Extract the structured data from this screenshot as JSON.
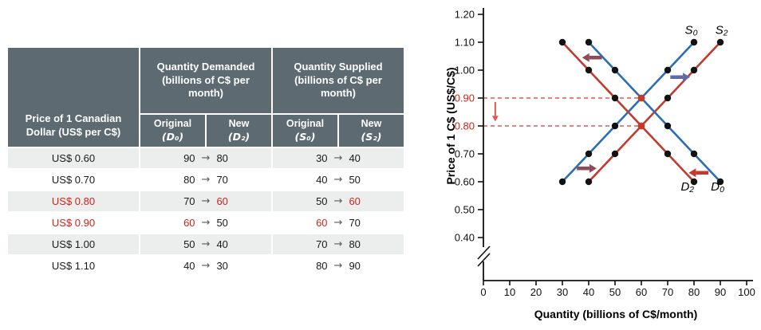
{
  "table": {
    "arrow_glyph": "→",
    "header": {
      "price_label": "Price of 1 Canadian Dollar (US$ per C$)",
      "demand_group": "Quantity Demanded (billions of C$ per month)",
      "supply_group": "Quantity Supplied (billions of C$ per month)",
      "sub_headers": [
        {
          "line1": "Original",
          "line2": "(D₀)"
        },
        {
          "line1": "New",
          "line2": "(D₂)"
        },
        {
          "line1": "Original",
          "line2": "(S₀)"
        },
        {
          "line1": "New",
          "line2": "(S₂)"
        }
      ]
    },
    "rows": [
      {
        "price": "US$ 0.60",
        "price_red": false,
        "qd_orig": "90",
        "qd_orig_red": false,
        "qd_new": "80",
        "qd_new_red": false,
        "qs_orig": "30",
        "qs_orig_red": false,
        "qs_new": "40",
        "qs_new_red": false
      },
      {
        "price": "US$ 0.70",
        "price_red": false,
        "qd_orig": "80",
        "qd_orig_red": false,
        "qd_new": "70",
        "qd_new_red": false,
        "qs_orig": "40",
        "qs_orig_red": false,
        "qs_new": "50",
        "qs_new_red": false
      },
      {
        "price": "US$ 0.80",
        "price_red": true,
        "qd_orig": "70",
        "qd_orig_red": false,
        "qd_new": "60",
        "qd_new_red": true,
        "qs_orig": "50",
        "qs_orig_red": false,
        "qs_new": "60",
        "qs_new_red": true
      },
      {
        "price": "US$ 0.90",
        "price_red": true,
        "qd_orig": "60",
        "qd_orig_red": true,
        "qd_new": "50",
        "qd_new_red": false,
        "qs_orig": "60",
        "qs_orig_red": true,
        "qs_new": "70",
        "qs_new_red": false
      },
      {
        "price": "US$ 1.00",
        "price_red": false,
        "qd_orig": "50",
        "qd_orig_red": false,
        "qd_new": "40",
        "qd_new_red": false,
        "qs_orig": "70",
        "qs_orig_red": false,
        "qs_new": "80",
        "qs_new_red": false
      },
      {
        "price": "US$ 1.10",
        "price_red": false,
        "qd_orig": "40",
        "qd_orig_red": false,
        "qd_new": "30",
        "qd_new_red": false,
        "qs_orig": "80",
        "qs_orig_red": false,
        "qs_new": "90",
        "qs_new_red": false
      }
    ]
  },
  "chart_data": {
    "type": "line",
    "xlabel": "Quantity (billions of C$/month)",
    "ylabel": "Price of 1 C$ (US$/C$)",
    "xlim": [
      0,
      100
    ],
    "ylim": [
      0.4,
      1.2
    ],
    "xticks": [
      0,
      10,
      20,
      30,
      40,
      50,
      60,
      70,
      80,
      90,
      100
    ],
    "yticks": [
      "1.20",
      "1.10",
      "1.00",
      "0.90",
      "0.80",
      "0.70",
      "0.60",
      "0.50",
      "0.40"
    ],
    "red_yticks": [
      "0.90",
      "0.80"
    ],
    "axis_break": true,
    "colors": {
      "original": "#2a6db4",
      "new": "#c23a2c",
      "dashed": "#dd5a52",
      "dot": "#121212",
      "eq_dot": "#c23a2c",
      "red_label": "#cc241a"
    },
    "series": [
      {
        "id": "S0",
        "label": "S₀",
        "role": "original",
        "points": [
          [
            30,
            0.6
          ],
          [
            40,
            0.7
          ],
          [
            50,
            0.8
          ],
          [
            60,
            0.9
          ],
          [
            70,
            1.0
          ],
          [
            80,
            1.1
          ]
        ],
        "label_at": [
          79,
          1.145
        ]
      },
      {
        "id": "S2",
        "label": "S₂",
        "role": "new",
        "points": [
          [
            40,
            0.6
          ],
          [
            50,
            0.7
          ],
          [
            60,
            0.8
          ],
          [
            70,
            0.9
          ],
          [
            80,
            1.0
          ],
          [
            90,
            1.1
          ]
        ],
        "label_at": [
          90.5,
          1.145
        ]
      },
      {
        "id": "D0",
        "label": "D₀",
        "role": "original",
        "points": [
          [
            40,
            1.1
          ],
          [
            50,
            1.0
          ],
          [
            60,
            0.9
          ],
          [
            70,
            0.8
          ],
          [
            80,
            0.7
          ],
          [
            90,
            0.6
          ]
        ],
        "label_at": [
          89,
          0.583
        ]
      },
      {
        "id": "D2",
        "label": "D₂",
        "role": "new",
        "points": [
          [
            30,
            1.1
          ],
          [
            40,
            1.0
          ],
          [
            50,
            0.9
          ],
          [
            60,
            0.8
          ],
          [
            70,
            0.7
          ],
          [
            80,
            0.6
          ]
        ],
        "label_at": [
          77.5,
          0.583
        ]
      }
    ],
    "equilibria": [
      {
        "x": 60,
        "price": 0.9
      },
      {
        "x": 60,
        "price": 0.8
      }
    ],
    "dashed_guides": [
      {
        "price": 0.9,
        "x_to": 60
      },
      {
        "price": 0.8,
        "x_to": 60
      }
    ],
    "price_drop_arrow": {
      "x": 4.5,
      "from_price": 0.886,
      "to_price": 0.816
    },
    "shift_arrows": [
      {
        "name": "demand-shift-arrow-top",
        "from": [
          45,
          1.045
        ],
        "to": [
          37.5,
          1.045
        ],
        "color": "#8d4a57"
      },
      {
        "name": "supply-shift-arrow-top",
        "from": [
          71,
          0.975
        ],
        "to": [
          78.5,
          0.975
        ],
        "color": "#5f6ba8"
      },
      {
        "name": "supply-shift-arrow-bottom",
        "from": [
          35.5,
          0.648
        ],
        "to": [
          43,
          0.648
        ],
        "color": "#8d4a57"
      },
      {
        "name": "demand-shift-arrow-bottom",
        "from": [
          85.5,
          0.632
        ],
        "to": [
          78,
          0.632
        ],
        "color": "#c23a2c"
      }
    ]
  }
}
